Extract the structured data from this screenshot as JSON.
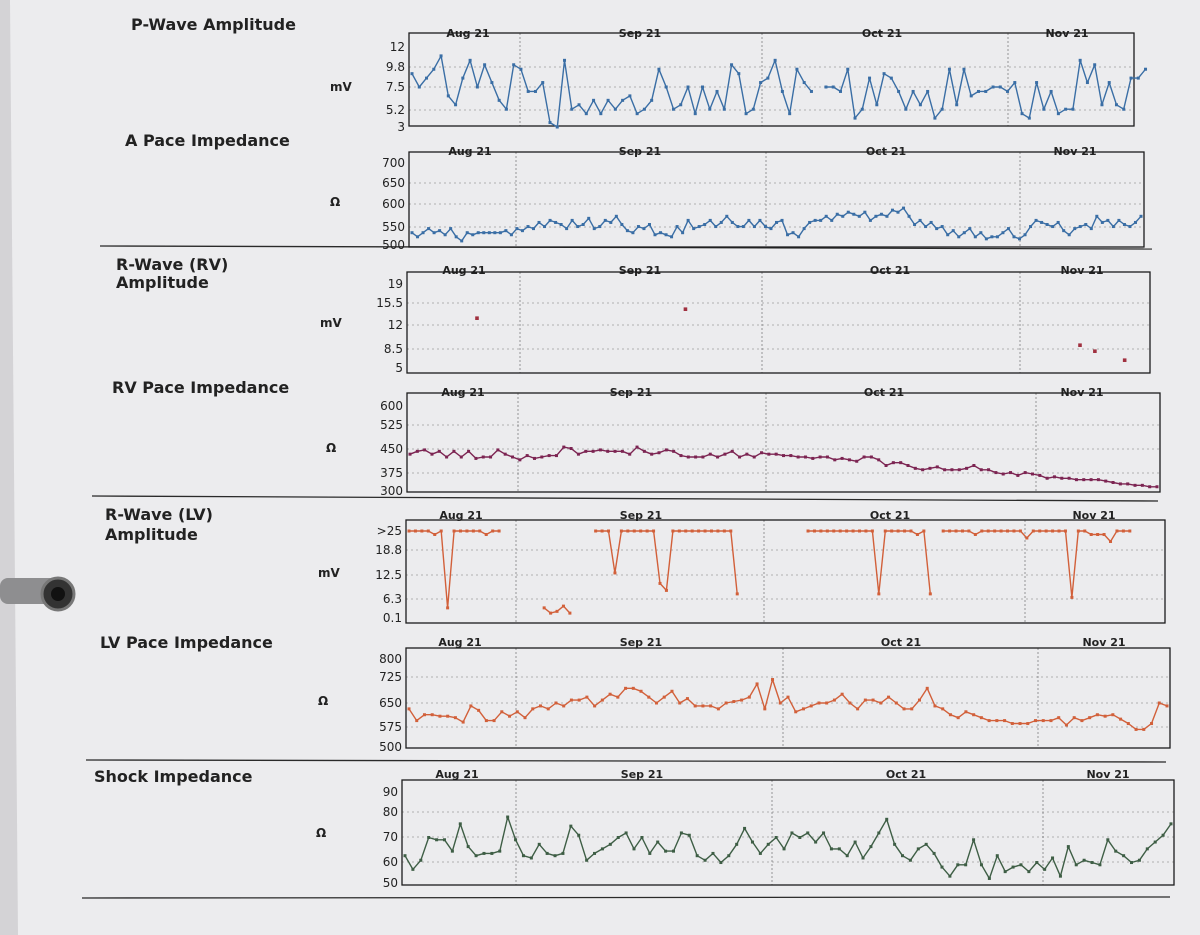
{
  "page": {
    "background": "#d9d8db",
    "paper": "#eeeef0"
  },
  "chart_data": [
    {
      "type": "line",
      "id": "p-wave",
      "title": "P-Wave Amplitude",
      "ylabel": "mV",
      "yticks": [
        "12",
        "9.8",
        "7.5",
        "5.2",
        "3"
      ],
      "ylim": [
        3,
        12
      ],
      "months": [
        "Aug 21",
        "Sep 21",
        "Oct 21",
        "Nov 21"
      ],
      "series": [
        {
          "color": "#3a6ea5",
          "values": [
            9,
            7.5,
            8.5,
            9.5,
            11,
            6.5,
            5.5,
            8.5,
            10.5,
            7.5,
            10,
            8,
            6,
            5,
            10,
            9.5,
            7,
            7,
            8,
            3.5,
            3,
            10.5,
            5,
            5.5,
            4.5,
            6,
            4.5,
            6,
            5,
            6,
            6.5,
            4.5,
            5,
            6,
            9.5,
            7.5,
            5,
            5.5,
            7.5,
            4.5,
            7.5,
            5,
            7,
            5,
            10,
            9,
            4.5,
            5,
            8,
            8.5,
            10.5,
            7,
            4.5,
            9.5,
            8,
            7,
            null,
            7.5,
            7.5,
            7,
            9.5,
            4,
            5,
            8.5,
            5.5,
            9,
            8.5,
            7,
            5,
            7,
            5.5,
            7,
            4,
            5,
            9.5,
            5.5,
            9.5,
            6.5,
            7,
            7,
            7.5,
            7.5,
            7,
            8,
            4.5,
            4,
            8,
            5,
            7,
            4.5,
            5,
            5,
            10.5,
            8,
            10,
            5.5,
            8,
            5.5,
            5,
            8.5,
            8.5,
            9.5
          ]
        }
      ]
    },
    {
      "type": "line",
      "id": "a-pace",
      "title": "A Pace Impedance",
      "ylabel": "Ω",
      "yticks": [
        "700",
        "650",
        "600",
        "550",
        "500"
      ],
      "ylim": [
        500,
        700
      ],
      "months": [
        "Aug 21",
        "Sep 21",
        "Oct 21",
        "Nov 21"
      ],
      "series": [
        {
          "color": "#3a6ea5",
          "values": [
            530,
            520,
            530,
            540,
            530,
            535,
            525,
            540,
            520,
            510,
            530,
            525,
            530,
            530,
            530,
            530,
            530,
            535,
            525,
            540,
            535,
            545,
            540,
            555,
            545,
            560,
            555,
            550,
            540,
            560,
            545,
            550,
            565,
            540,
            545,
            560,
            555,
            570,
            550,
            535,
            530,
            545,
            540,
            550,
            525,
            530,
            525,
            520,
            545,
            530,
            560,
            540,
            545,
            550,
            560,
            545,
            555,
            570,
            555,
            545,
            545,
            560,
            545,
            560,
            545,
            540,
            555,
            560,
            525,
            530,
            520,
            540,
            555,
            560,
            560,
            570,
            560,
            575,
            570,
            580,
            575,
            570,
            580,
            560,
            570,
            575,
            570,
            585,
            580,
            590,
            570,
            550,
            560,
            545,
            555,
            540,
            545,
            525,
            535,
            520,
            530,
            540,
            520,
            530,
            515,
            520,
            520,
            530,
            540,
            520,
            515,
            525,
            545,
            560,
            555,
            550,
            545,
            555,
            535,
            525,
            540,
            545,
            550,
            540,
            570,
            555,
            560,
            545,
            560,
            550,
            545,
            555,
            570
          ]
        }
      ]
    },
    {
      "type": "scatter",
      "id": "r-wave-rv",
      "title": "R-Wave (RV)\nAmplitude",
      "ylabel": "mV",
      "yticks": [
        "19",
        "15.5",
        "12",
        "8.5",
        "5"
      ],
      "ylim": [
        5,
        19
      ],
      "months": [
        "Aug 21",
        "Sep 21",
        "Oct 21",
        "Nov 21"
      ],
      "series": [
        {
          "color": "#a0303f",
          "points": [
            [
              9,
              13.3
            ],
            [
              37,
              14.8
            ],
            [
              90,
              8.8
            ],
            [
              92,
              7.8
            ],
            [
              96,
              6.3
            ]
          ]
        }
      ]
    },
    {
      "type": "line",
      "id": "rv-pace",
      "title": "RV Pace Impedance",
      "ylabel": "Ω",
      "yticks": [
        "600",
        "525",
        "450",
        "375",
        "300"
      ],
      "ylim": [
        300,
        600
      ],
      "months": [
        "Aug 21",
        "Sep 21",
        "Oct 21",
        "Nov 21"
      ],
      "series": [
        {
          "color": "#7c2452",
          "values": [
            430,
            440,
            445,
            430,
            440,
            420,
            440,
            420,
            440,
            415,
            420,
            420,
            445,
            430,
            420,
            410,
            425,
            415,
            420,
            425,
            425,
            455,
            450,
            430,
            440,
            440,
            445,
            440,
            440,
            440,
            430,
            455,
            440,
            430,
            435,
            445,
            440,
            425,
            420,
            420,
            420,
            430,
            420,
            430,
            440,
            420,
            430,
            420,
            435,
            430,
            430,
            425,
            425,
            420,
            420,
            415,
            420,
            420,
            410,
            415,
            410,
            405,
            420,
            420,
            410,
            390,
            400,
            400,
            390,
            380,
            375,
            380,
            385,
            375,
            375,
            375,
            380,
            390,
            375,
            375,
            365,
            360,
            365,
            355,
            365,
            360,
            355,
            345,
            350,
            345,
            345,
            340,
            340,
            340,
            340,
            335,
            330,
            325,
            325,
            320,
            320,
            315,
            315
          ]
        }
      ]
    },
    {
      "type": "line",
      "id": "r-wave-lv",
      "title": "R-Wave (LV)\nAmplitude",
      "ylabel": "mV",
      "yticks": [
        ">25",
        "18.8",
        "12.5",
        "6.3",
        "0.1"
      ],
      "ylim": [
        0.1,
        25
      ],
      "months": [
        "Aug 21",
        "Sep 21",
        "Oct 21",
        "Nov 21"
      ],
      "series": [
        {
          "color": "#d2603a",
          "values": [
            25,
            25,
            25,
            25,
            24,
            25,
            3,
            25,
            25,
            25,
            25,
            25,
            24,
            25,
            25,
            null,
            null,
            null,
            null,
            null,
            null,
            3,
            1.5,
            2,
            3.5,
            1.5,
            null,
            null,
            null,
            25,
            25,
            25,
            13,
            25,
            25,
            25,
            25,
            25,
            25,
            10,
            8,
            25,
            25,
            25,
            25,
            25,
            25,
            25,
            25,
            25,
            25,
            7,
            null,
            null,
            null,
            null,
            null,
            null,
            null,
            null,
            null,
            null,
            25,
            25,
            25,
            25,
            25,
            25,
            25,
            25,
            25,
            25,
            25,
            7,
            25,
            25,
            25,
            25,
            25,
            24,
            25,
            7,
            null,
            25,
            25,
            25,
            25,
            25,
            24,
            25,
            25,
            25,
            25,
            25,
            25,
            25,
            23,
            25,
            25,
            25,
            25,
            25,
            25,
            6,
            25,
            25,
            24,
            24,
            24,
            22,
            25,
            25,
            25
          ]
        }
      ]
    },
    {
      "type": "line",
      "id": "lv-pace",
      "title": "LV Pace Impedance",
      "ylabel": "Ω",
      "yticks": [
        "800",
        "725",
        "650",
        "575",
        "500"
      ],
      "ylim": [
        500,
        800
      ],
      "months": [
        "Aug 21",
        "Sep 21",
        "Oct 21",
        "Nov 21"
      ],
      "series": [
        {
          "color": "#d2603a",
          "values": [
            630,
            590,
            610,
            610,
            605,
            605,
            600,
            585,
            640,
            625,
            590,
            590,
            620,
            605,
            620,
            600,
            630,
            640,
            630,
            650,
            640,
            660,
            660,
            670,
            640,
            660,
            680,
            670,
            700,
            700,
            690,
            670,
            650,
            670,
            690,
            650,
            665,
            640,
            640,
            640,
            630,
            650,
            655,
            660,
            670,
            715,
            630,
            730,
            650,
            670,
            620,
            630,
            640,
            650,
            650,
            660,
            680,
            650,
            630,
            660,
            660,
            650,
            670,
            650,
            630,
            630,
            660,
            700,
            640,
            630,
            610,
            600,
            620,
            610,
            600,
            590,
            590,
            590,
            580,
            580,
            580,
            590,
            590,
            590,
            600,
            575,
            600,
            590,
            600,
            610,
            605,
            610,
            595,
            580,
            560,
            560,
            580,
            650,
            640
          ]
        }
      ]
    },
    {
      "type": "line",
      "id": "shock",
      "title": "Shock Impedance",
      "ylabel": "Ω",
      "yticks": [
        "90",
        "80",
        "70",
        "60",
        "50"
      ],
      "ylim": [
        50,
        90
      ],
      "months": [
        "Aug 21",
        "Sep 21",
        "Oct 21",
        "Nov 21"
      ],
      "series": [
        {
          "color": "#3e5e45",
          "values": [
            62,
            56,
            60,
            70,
            69,
            69,
            64,
            76,
            66,
            62,
            63,
            63,
            64,
            79,
            69,
            62,
            61,
            67,
            63,
            62,
            63,
            75,
            71,
            60,
            63,
            65,
            67,
            70,
            72,
            65,
            70,
            63,
            68,
            64,
            64,
            72,
            71,
            62,
            60,
            63,
            59,
            62,
            67,
            74,
            68,
            63,
            67,
            70,
            65,
            72,
            70,
            72,
            68,
            72,
            65,
            65,
            62,
            68,
            61,
            66,
            72,
            78,
            67,
            62,
            60,
            65,
            67,
            63,
            57,
            53,
            58,
            58,
            69,
            58,
            52,
            62,
            55,
            57,
            58,
            55,
            59,
            56,
            61,
            53,
            66,
            58,
            60,
            59,
            58,
            69,
            64,
            62,
            59,
            60,
            65,
            68,
            71,
            76
          ]
        }
      ]
    }
  ]
}
